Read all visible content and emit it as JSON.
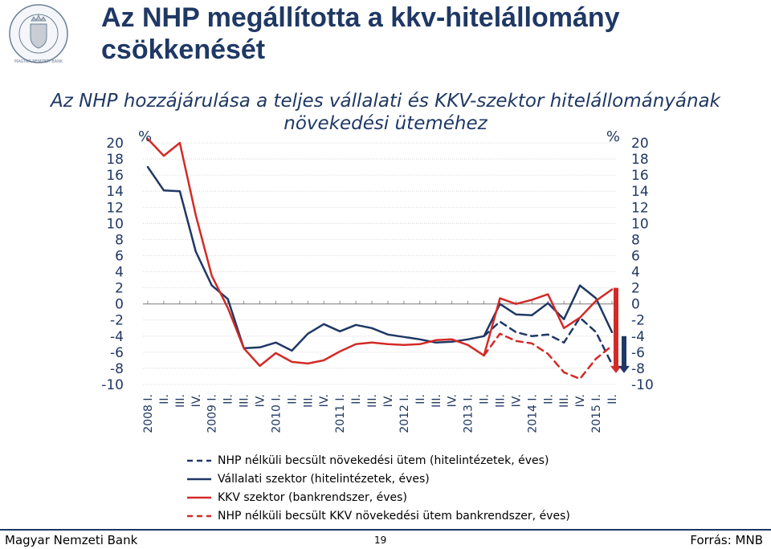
{
  "header": {
    "title": "Az NHP megállította a kkv-hitelállomány csökkenését",
    "logo_text": "MAGYAR NEMZETI BANK"
  },
  "chart_data": {
    "type": "line",
    "title": "Az NHP hozzájárulása a teljes vállalati és KKV-szektor hitelállományának növekedési üteméhez",
    "ylabel_left": "%",
    "ylabel_right": "%",
    "ylim": [
      -10,
      20
    ],
    "yticks": [
      20,
      18,
      16,
      14,
      12,
      10,
      8,
      6,
      4,
      2,
      0,
      -2,
      -4,
      -6,
      -8,
      -10
    ],
    "grid": true,
    "legend_position": "bottom",
    "x": [
      "2008 I.",
      "II.",
      "III.",
      "IV.",
      "2009 I.",
      "II.",
      "III.",
      "IV.",
      "2010 I.",
      "II.",
      "III.",
      "IV.",
      "2011 I.",
      "II.",
      "III.",
      "IV.",
      "2012 I.",
      "II.",
      "III.",
      "IV.",
      "2013 I.",
      "II.",
      "III.",
      "IV.",
      "2014 I.",
      "II.",
      "III.",
      "IV.",
      "2015 I.",
      "II."
    ],
    "series": [
      {
        "name": "NHP nélküli becsült növekedési ütem (hitelintézetek, éves)",
        "color": "#1f3864",
        "dash": true,
        "values": [
          null,
          null,
          null,
          null,
          null,
          null,
          null,
          null,
          null,
          null,
          null,
          null,
          null,
          null,
          null,
          null,
          null,
          null,
          null,
          null,
          null,
          -4.0,
          -2.2,
          -3.5,
          -4.0,
          -3.8,
          -4.8,
          -1.7,
          -3.5,
          -7.5
        ]
      },
      {
        "name": "Vállalati szektor (hitelintézetek, éves)",
        "color": "#1f3864",
        "dash": false,
        "values": [
          17.0,
          14.1,
          14.0,
          6.5,
          2.3,
          0.6,
          -5.5,
          -5.4,
          -4.8,
          -5.8,
          -3.7,
          -2.5,
          -3.4,
          -2.6,
          -3.0,
          -3.8,
          -4.1,
          -4.4,
          -4.8,
          -4.7,
          -4.4,
          -4.0,
          0.0,
          -1.3,
          -1.4,
          0.1,
          -1.9,
          2.3,
          0.7,
          -3.5
        ]
      },
      {
        "name": "KKV szektor (bankrendszer, éves)",
        "color": "#d22b27",
        "dash": false,
        "values": [
          20.5,
          18.4,
          20.0,
          11.0,
          3.5,
          -0.5,
          -5.5,
          -7.7,
          -6.1,
          -7.2,
          -7.4,
          -7.0,
          -5.9,
          -5.0,
          -4.8,
          -5.0,
          -5.1,
          -5.0,
          -4.5,
          -4.4,
          -5.1,
          -6.4,
          0.7,
          0.0,
          0.5,
          1.2,
          -3.0,
          -1.7,
          0.4,
          1.8
        ]
      },
      {
        "name": "NHP nélküli becsült KKV növekedési ütem bankrendszer, éves)",
        "color": "#d22b27",
        "dash": true,
        "values": [
          null,
          null,
          null,
          null,
          null,
          null,
          null,
          null,
          null,
          null,
          null,
          null,
          null,
          null,
          null,
          null,
          null,
          null,
          null,
          null,
          null,
          -6.4,
          -3.7,
          -4.6,
          -4.9,
          -6.2,
          -8.5,
          -9.3,
          -6.8,
          -5.2
        ]
      }
    ],
    "right_markers": [
      {
        "from": 2.0,
        "to": -8.0,
        "color": "#d22b27"
      },
      {
        "from": -4.0,
        "to": -8.0,
        "color": "#1f3864"
      }
    ]
  },
  "footer": {
    "left": "Magyar Nemzeti Bank",
    "page": "19",
    "right": "Forrás: MNB"
  }
}
